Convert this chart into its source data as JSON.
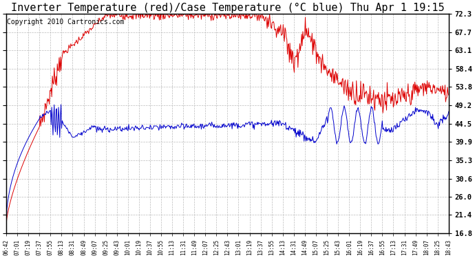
{
  "title": "Inverter Temperature (red)/Case Temperature (°C blue) Thu Apr 1 19:15",
  "copyright": "Copyright 2010 Cartronics.com",
  "ylabel_right": [
    "72.3",
    "67.7",
    "63.1",
    "58.4",
    "53.8",
    "49.2",
    "44.5",
    "39.9",
    "35.3",
    "30.6",
    "26.0",
    "21.4",
    "16.8"
  ],
  "y_values": [
    72.3,
    67.7,
    63.1,
    58.4,
    53.8,
    49.2,
    44.5,
    39.9,
    35.3,
    30.6,
    26.0,
    21.4,
    16.8
  ],
  "ylim": [
    16.8,
    72.3
  ],
  "xtick_labels": [
    "06:42",
    "07:01",
    "07:19",
    "07:37",
    "07:55",
    "08:13",
    "08:31",
    "08:49",
    "09:07",
    "09:25",
    "09:43",
    "10:01",
    "10:19",
    "10:37",
    "10:55",
    "11:13",
    "11:31",
    "11:49",
    "12:07",
    "12:25",
    "12:43",
    "13:01",
    "13:19",
    "13:37",
    "13:55",
    "14:13",
    "14:31",
    "14:49",
    "15:07",
    "15:25",
    "15:43",
    "16:01",
    "16:19",
    "16:37",
    "16:55",
    "17:13",
    "17:31",
    "17:49",
    "18:07",
    "18:25",
    "18:43"
  ],
  "background_color": "#ffffff",
  "plot_bg_color": "#ffffff",
  "grid_color": "#bbbbbb",
  "red_color": "#dd0000",
  "blue_color": "#0000cc",
  "title_fontsize": 11,
  "copyright_fontsize": 7
}
